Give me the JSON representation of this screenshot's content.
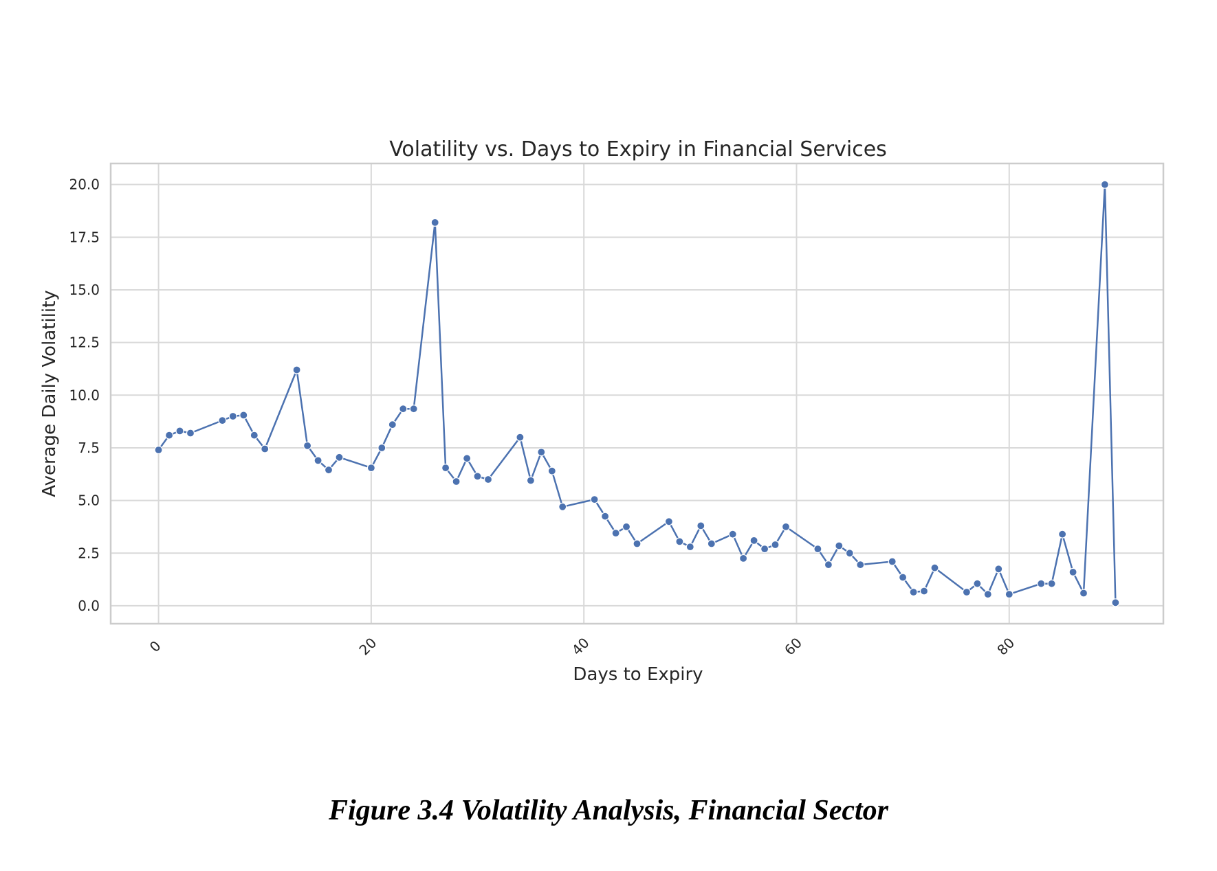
{
  "caption": "Figure 3.4 Volatility Analysis, Financial Sector",
  "chart_data": {
    "type": "line",
    "title": "Volatility vs. Days to Expiry in Financial Services",
    "xlabel": "Days to Expiry",
    "ylabel": "Average Daily Volatility",
    "xlim": [
      -4.5,
      94.5
    ],
    "ylim": [
      -0.85,
      21.0
    ],
    "xticks": [
      0,
      20,
      40,
      60,
      80
    ],
    "xtick_labels": [
      "0",
      "20",
      "40",
      "60",
      "80"
    ],
    "yticks": [
      0.0,
      2.5,
      5.0,
      7.5,
      10.0,
      12.5,
      15.0,
      17.5,
      20.0
    ],
    "ytick_labels": [
      "0.0",
      "2.5",
      "5.0",
      "7.5",
      "10.0",
      "12.5",
      "15.0",
      "17.5",
      "20.0"
    ],
    "grid": true,
    "legend": "none",
    "colors": {
      "line": "#4c72b0"
    },
    "series": [
      {
        "x": [
          0,
          1,
          2,
          3,
          6,
          7,
          8,
          9,
          10,
          13,
          14,
          15,
          16,
          17,
          20,
          21,
          22,
          23,
          24,
          26,
          27,
          28,
          29,
          30,
          31,
          34,
          35,
          36,
          37,
          38,
          41,
          42,
          43,
          44,
          45,
          48,
          49,
          50,
          51,
          52,
          54,
          55,
          56,
          57,
          58,
          59,
          62,
          63,
          64,
          65,
          66,
          69,
          70,
          71,
          72,
          73,
          76,
          77,
          78,
          79,
          80,
          83,
          84,
          85,
          86,
          87,
          89,
          90
        ],
        "y": [
          7.4,
          8.1,
          8.3,
          8.2,
          8.8,
          9.0,
          9.05,
          8.1,
          7.45,
          11.2,
          7.6,
          6.9,
          6.45,
          7.05,
          6.55,
          7.5,
          8.6,
          9.35,
          9.35,
          18.2,
          6.55,
          5.9,
          7.0,
          6.15,
          6.0,
          8.0,
          5.95,
          7.3,
          6.4,
          4.7,
          5.05,
          4.25,
          3.45,
          3.75,
          2.95,
          4.0,
          3.05,
          2.8,
          3.8,
          2.95,
          3.4,
          2.25,
          3.1,
          2.7,
          2.9,
          3.75,
          2.7,
          1.95,
          2.85,
          2.5,
          1.95,
          2.1,
          1.35,
          0.65,
          0.7,
          1.8,
          0.65,
          1.05,
          0.55,
          1.75,
          0.55,
          1.05,
          1.05,
          3.4,
          1.6,
          0.6,
          20.0,
          0.15
        ]
      }
    ]
  }
}
